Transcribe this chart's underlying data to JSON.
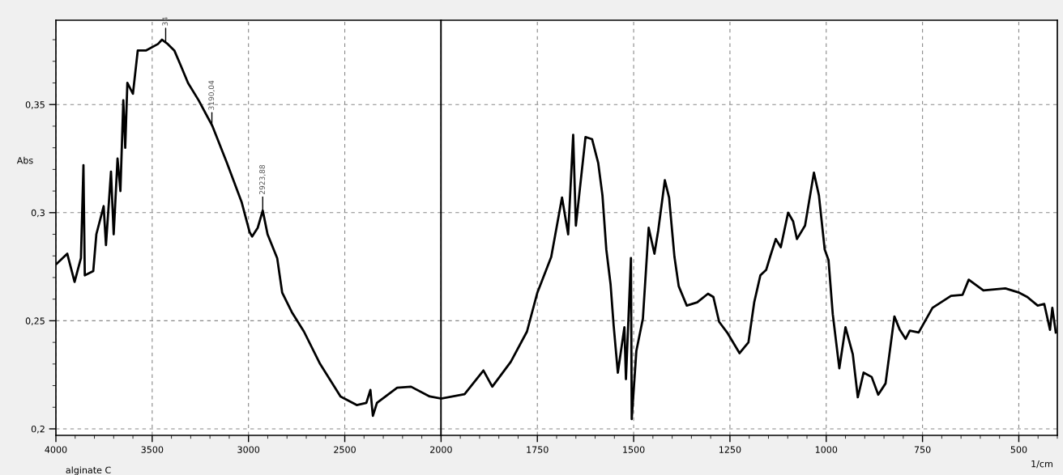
{
  "chart_data": [
    {
      "type": "line",
      "ylabel": "Abs",
      "x": [
        4000,
        3941,
        3903,
        3870,
        3857,
        3850,
        3806,
        3790,
        3752,
        3740,
        3714,
        3700,
        3680,
        3665,
        3650,
        3640,
        3629,
        3600,
        3575,
        3533,
        3470,
        3449,
        3419,
        3385,
        3356,
        3314,
        3259,
        3187,
        3112,
        3036,
        2994,
        2981,
        2952,
        2926,
        2901,
        2851,
        2825,
        2775,
        2712,
        2628,
        2522,
        2438,
        2388,
        2367,
        2354,
        2333,
        2228,
        2156,
        2059,
        2000
      ],
      "values": [
        0.276,
        0.281,
        0.268,
        0.279,
        0.322,
        0.271,
        0.273,
        0.29,
        0.303,
        0.285,
        0.319,
        0.29,
        0.325,
        0.31,
        0.352,
        0.33,
        0.36,
        0.355,
        0.375,
        0.375,
        0.378,
        0.38,
        0.378,
        0.375,
        0.369,
        0.36,
        0.352,
        0.34,
        0.323,
        0.305,
        0.291,
        0.289,
        0.293,
        0.301,
        0.29,
        0.279,
        0.263,
        0.254,
        0.245,
        0.23,
        0.215,
        0.211,
        0.212,
        0.218,
        0.206,
        0.212,
        0.219,
        0.2195,
        0.215,
        0.214
      ],
      "color": "#000000",
      "xlim": [
        4000,
        2000
      ],
      "xticks": [
        4000,
        3500,
        3000,
        2500,
        2000
      ],
      "ylim": [
        0.197,
        0.389
      ],
      "yticks": [
        {
          "value": 0.2,
          "label": "0,2"
        },
        {
          "value": 0.25,
          "label": "0,25"
        },
        {
          "value": 0.3,
          "label": "0,3"
        },
        {
          "value": 0.35,
          "label": "0,35"
        }
      ],
      "grid": true,
      "annotations": [
        {
          "text": "34",
          "x": 3430,
          "y": 0.379
        },
        {
          "text": "3190,04",
          "x": 3190,
          "y": 0.34
        },
        {
          "text": "2923,88",
          "x": 2926,
          "y": 0.301
        },
        "alginate C"
      ]
    },
    {
      "type": "line",
      "xlabel": "1/cm",
      "x": [
        2000,
        1939,
        1890,
        1867,
        1819,
        1777,
        1750,
        1714,
        1686,
        1670,
        1657,
        1650,
        1625,
        1608,
        1592,
        1581,
        1571,
        1560,
        1552,
        1541,
        1524,
        1520,
        1507,
        1505,
        1493,
        1476,
        1461,
        1446,
        1436,
        1419,
        1408,
        1394,
        1383,
        1362,
        1335,
        1307,
        1293,
        1278,
        1257,
        1225,
        1202,
        1187,
        1171,
        1156,
        1145,
        1131,
        1118,
        1099,
        1086,
        1076,
        1055,
        1032,
        1019,
        1004,
        994,
        983,
        966,
        950,
        931,
        918,
        903,
        882,
        865,
        846,
        823,
        809,
        794,
        783,
        760,
        724,
        676,
        646,
        630,
        615,
        592,
        535,
        499,
        478,
        451,
        434,
        419,
        413,
        404
      ],
      "values": [
        0.214,
        0.216,
        0.227,
        0.2195,
        0.231,
        0.245,
        0.263,
        0.2795,
        0.307,
        0.29,
        0.336,
        0.294,
        0.335,
        0.334,
        0.323,
        0.308,
        0.283,
        0.267,
        0.248,
        0.226,
        0.247,
        0.223,
        0.279,
        0.2045,
        0.236,
        0.251,
        0.293,
        0.281,
        0.292,
        0.315,
        0.307,
        0.2795,
        0.266,
        0.257,
        0.2585,
        0.2625,
        0.261,
        0.2495,
        0.2445,
        0.235,
        0.24,
        0.2585,
        0.271,
        0.2735,
        0.28,
        0.2878,
        0.284,
        0.3,
        0.296,
        0.2878,
        0.294,
        0.3185,
        0.308,
        0.283,
        0.278,
        0.253,
        0.228,
        0.247,
        0.2345,
        0.2146,
        0.226,
        0.224,
        0.2158,
        0.221,
        0.252,
        0.2458,
        0.2416,
        0.2454,
        0.2446,
        0.256,
        0.2615,
        0.262,
        0.269,
        0.267,
        0.264,
        0.265,
        0.263,
        0.261,
        0.257,
        0.2578,
        0.2458,
        0.256,
        0.2446
      ],
      "color": "#000000",
      "xlim": [
        2000,
        400
      ],
      "xticks": [
        1750,
        1500,
        1250,
        1000,
        750,
        500
      ],
      "ylim": [
        0.197,
        0.389
      ],
      "yticks": [
        0.2,
        0.25,
        0.3,
        0.35
      ],
      "tick_labels": "x",
      "grid": true
    }
  ]
}
